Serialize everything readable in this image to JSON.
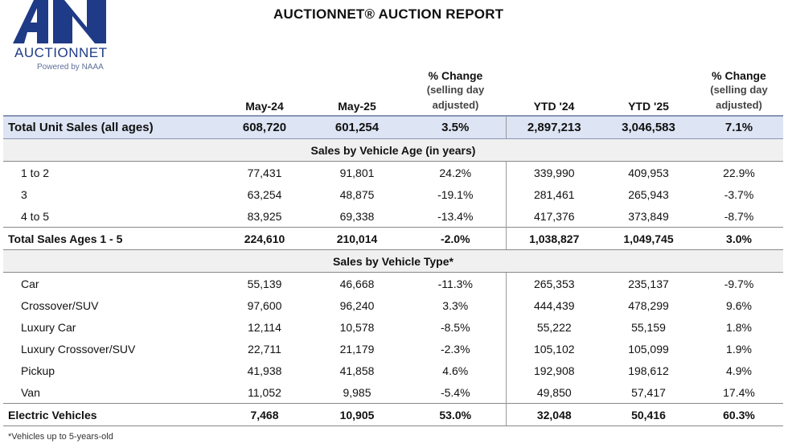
{
  "logo": {
    "letters": "AN",
    "wordmark": "AUCTIONNET",
    "tagline": "Powered by NAAA"
  },
  "title": "AUCTIONNET® AUCTION REPORT",
  "headers": {
    "col1": "May-24",
    "col2": "May-25",
    "col3_top": "% Change",
    "col3_sub1": "(selling day",
    "col3_sub2": "adjusted)",
    "col4": "YTD '24",
    "col5": "YTD '25",
    "col6_top": "% Change",
    "col6_sub1": "(selling day",
    "col6_sub2": "adjusted)"
  },
  "total_unit_sales": {
    "label": "Total Unit Sales (all ages)",
    "values": [
      "608,720",
      "601,254",
      "3.5%",
      "2,897,213",
      "3,046,583",
      "7.1%"
    ]
  },
  "section_age": "Sales by Vehicle Age (in years)",
  "age_rows": [
    {
      "label": "1 to 2",
      "values": [
        "77,431",
        "91,801",
        "24.2%",
        "339,990",
        "409,953",
        "22.9%"
      ]
    },
    {
      "label": "3",
      "values": [
        "63,254",
        "48,875",
        "-19.1%",
        "281,461",
        "265,943",
        "-3.7%"
      ]
    },
    {
      "label": "4 to 5",
      "values": [
        "83,925",
        "69,338",
        "-13.4%",
        "417,376",
        "373,849",
        "-8.7%"
      ]
    }
  ],
  "total_ages": {
    "label": "Total Sales Ages 1 - 5",
    "values": [
      "224,610",
      "210,014",
      "-2.0%",
      "1,038,827",
      "1,049,745",
      "3.0%"
    ]
  },
  "section_type": "Sales by Vehicle Type*",
  "type_rows": [
    {
      "label": "Car",
      "values": [
        "55,139",
        "46,668",
        "-11.3%",
        "265,353",
        "235,137",
        "-9.7%"
      ]
    },
    {
      "label": "Crossover/SUV",
      "values": [
        "97,600",
        "96,240",
        "3.3%",
        "444,439",
        "478,299",
        "9.6%"
      ]
    },
    {
      "label": "Luxury Car",
      "values": [
        "12,114",
        "10,578",
        "-8.5%",
        "55,222",
        "55,159",
        "1.8%"
      ]
    },
    {
      "label": "Luxury Crossover/SUV",
      "values": [
        "22,711",
        "21,179",
        "-2.3%",
        "105,102",
        "105,099",
        "1.9%"
      ]
    },
    {
      "label": "Pickup",
      "values": [
        "41,938",
        "41,858",
        "4.6%",
        "192,908",
        "198,612",
        "4.9%"
      ]
    },
    {
      "label": "Van",
      "values": [
        "11,052",
        "9,985",
        "-5.4%",
        "49,850",
        "57,417",
        "17.4%"
      ]
    }
  ],
  "electric": {
    "label": "Electric Vehicles",
    "values": [
      "7,468",
      "10,905",
      "53.0%",
      "32,048",
      "50,416",
      "60.3%"
    ]
  },
  "footnote": "*Vehicles up to 5-years-old",
  "colors": {
    "brand": "#1f3b87",
    "total_row_bg": "#dde4f3",
    "section_bg": "#f0f0f0"
  }
}
